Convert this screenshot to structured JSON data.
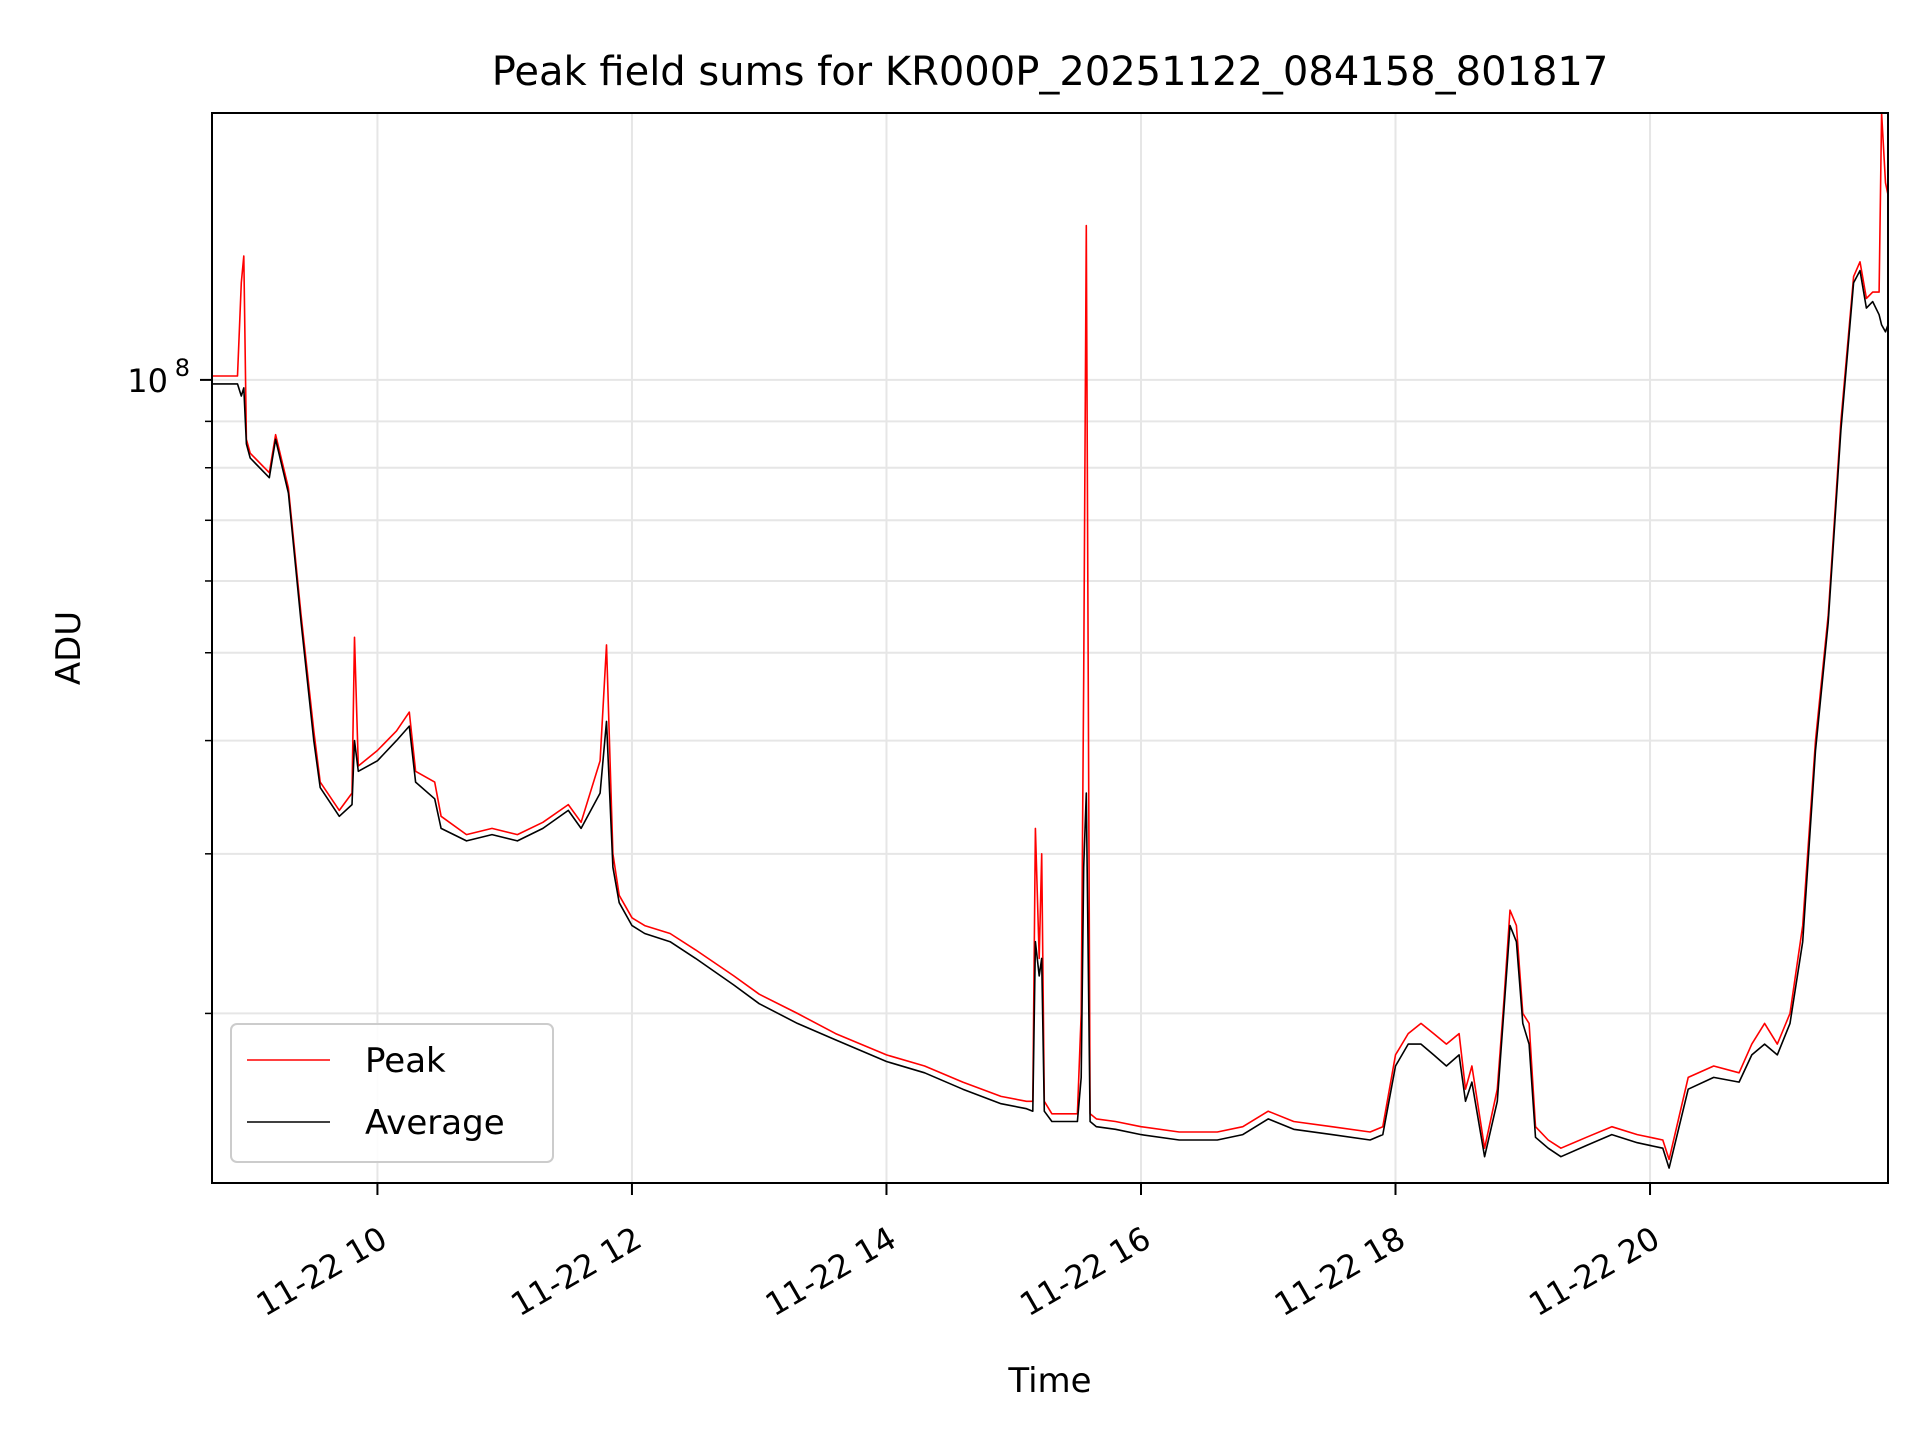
{
  "chart_data": {
    "type": "line",
    "title": "Peak field sums for KR000P_20251122_084158_801817",
    "xlabel": "Time",
    "ylabel": "ADU",
    "yscale": "log",
    "ylim": [
      13000000,
      197000000
    ],
    "xlim": [
      8.7,
      21.87
    ],
    "x_ticks": [
      {
        "value": 10,
        "label": "11-22 10"
      },
      {
        "value": 12,
        "label": "11-22 12"
      },
      {
        "value": 14,
        "label": "11-22 14"
      },
      {
        "value": 16,
        "label": "11-22 16"
      },
      {
        "value": 18,
        "label": "11-22 18"
      },
      {
        "value": 20,
        "label": "11-22 20"
      }
    ],
    "y_ticks": [
      {
        "value": 100000000,
        "label_base": "10",
        "label_exp": "8"
      }
    ],
    "y_minor_ticks": [
      20000000,
      30000000,
      40000000,
      50000000,
      60000000,
      70000000,
      80000000,
      90000000
    ],
    "grid": true,
    "legend_position": "lower-left",
    "colors": {
      "peak": "#ff0000",
      "average": "#000000",
      "grid": "#e6e6e6"
    },
    "series": [
      {
        "name": "Peak",
        "color": "#ff0000",
        "x": [
          8.7,
          8.9,
          8.93,
          8.95,
          8.97,
          9.0,
          9.15,
          9.2,
          9.3,
          9.4,
          9.5,
          9.55,
          9.7,
          9.8,
          9.82,
          9.85,
          10.0,
          10.15,
          10.25,
          10.3,
          10.45,
          10.5,
          10.7,
          10.9,
          11.1,
          11.3,
          11.5,
          11.6,
          11.75,
          11.8,
          11.85,
          11.9,
          12.0,
          12.1,
          12.3,
          12.5,
          12.8,
          13.0,
          13.3,
          13.6,
          14.0,
          14.3,
          14.6,
          14.9,
          15.1,
          15.15,
          15.17,
          15.2,
          15.22,
          15.24,
          15.3,
          15.4,
          15.5,
          15.53,
          15.55,
          15.57,
          15.6,
          15.65,
          15.8,
          16.0,
          16.3,
          16.6,
          16.8,
          17.0,
          17.2,
          17.5,
          17.8,
          17.9,
          18.0,
          18.1,
          18.2,
          18.3,
          18.4,
          18.5,
          18.55,
          18.6,
          18.7,
          18.8,
          18.85,
          18.9,
          18.95,
          19.0,
          19.05,
          19.1,
          19.2,
          19.3,
          19.5,
          19.7,
          19.9,
          20.1,
          20.15,
          20.3,
          20.5,
          20.7,
          20.8,
          20.9,
          21.0,
          21.1,
          21.2,
          21.3,
          21.4,
          21.5,
          21.6,
          21.65,
          21.7,
          21.75,
          21.8,
          21.82,
          21.85,
          21.87
        ],
        "y": [
          101000000,
          101000000,
          128000000,
          137000000,
          86000000,
          83000000,
          79000000,
          87000000,
          76000000,
          55000000,
          41000000,
          36000000,
          33500000,
          35000000,
          52000000,
          37500000,
          39000000,
          41000000,
          43000000,
          37000000,
          36000000,
          33000000,
          31500000,
          32000000,
          31500000,
          32500000,
          34000000,
          32500000,
          38000000,
          51000000,
          30000000,
          27000000,
          25500000,
          25000000,
          24500000,
          23500000,
          22000000,
          21000000,
          20000000,
          19000000,
          18000000,
          17500000,
          16800000,
          16200000,
          16000000,
          16000000,
          32000000,
          23000000,
          30000000,
          16000000,
          15500000,
          15500000,
          15500000,
          20000000,
          47000000,
          148000000,
          15500000,
          15300000,
          15200000,
          15000000,
          14800000,
          14800000,
          15000000,
          15600000,
          15200000,
          15000000,
          14800000,
          15000000,
          18000000,
          19000000,
          19500000,
          19000000,
          18500000,
          19000000,
          16500000,
          17500000,
          14200000,
          16500000,
          20500000,
          26000000,
          25000000,
          20000000,
          19500000,
          15000000,
          14500000,
          14200000,
          14600000,
          15000000,
          14700000,
          14500000,
          13800000,
          17000000,
          17500000,
          17200000,
          18500000,
          19500000,
          18500000,
          20000000,
          25000000,
          40000000,
          55000000,
          90000000,
          130000000,
          135000000,
          123000000,
          125000000,
          125000000,
          197000000,
          165000000,
          160000000
        ]
      },
      {
        "name": "Average",
        "color": "#000000",
        "x": [
          8.7,
          8.9,
          8.93,
          8.95,
          8.97,
          9.0,
          9.15,
          9.2,
          9.3,
          9.4,
          9.5,
          9.55,
          9.7,
          9.8,
          9.82,
          9.85,
          10.0,
          10.15,
          10.25,
          10.3,
          10.45,
          10.5,
          10.7,
          10.9,
          11.1,
          11.3,
          11.5,
          11.6,
          11.75,
          11.8,
          11.85,
          11.9,
          12.0,
          12.1,
          12.3,
          12.5,
          12.8,
          13.0,
          13.3,
          13.6,
          14.0,
          14.3,
          14.6,
          14.9,
          15.1,
          15.15,
          15.17,
          15.2,
          15.22,
          15.24,
          15.3,
          15.4,
          15.5,
          15.53,
          15.55,
          15.57,
          15.6,
          15.65,
          15.8,
          16.0,
          16.3,
          16.6,
          16.8,
          17.0,
          17.2,
          17.5,
          17.8,
          17.9,
          18.0,
          18.1,
          18.2,
          18.3,
          18.4,
          18.5,
          18.55,
          18.6,
          18.7,
          18.8,
          18.85,
          18.9,
          18.95,
          19.0,
          19.05,
          19.1,
          19.2,
          19.3,
          19.5,
          19.7,
          19.9,
          20.1,
          20.15,
          20.3,
          20.5,
          20.7,
          20.8,
          20.9,
          21.0,
          21.1,
          21.2,
          21.3,
          21.4,
          21.5,
          21.6,
          21.65,
          21.7,
          21.75,
          21.8,
          21.82,
          21.85,
          21.87
        ],
        "y": [
          99000000,
          99000000,
          96000000,
          98000000,
          85000000,
          82000000,
          78000000,
          86000000,
          75000000,
          54000000,
          40000000,
          35500000,
          33000000,
          34000000,
          40000000,
          37000000,
          38000000,
          40000000,
          41500000,
          36000000,
          34500000,
          32000000,
          31000000,
          31500000,
          31000000,
          32000000,
          33500000,
          32000000,
          35000000,
          42000000,
          29000000,
          26500000,
          25000000,
          24500000,
          24000000,
          23000000,
          21500000,
          20500000,
          19500000,
          18700000,
          17700000,
          17200000,
          16500000,
          15900000,
          15700000,
          15600000,
          24000000,
          22000000,
          23000000,
          15600000,
          15200000,
          15200000,
          15200000,
          17000000,
          29000000,
          35000000,
          15200000,
          15000000,
          14900000,
          14700000,
          14500000,
          14500000,
          14700000,
          15300000,
          14900000,
          14700000,
          14500000,
          14700000,
          17500000,
          18500000,
          18500000,
          18000000,
          17500000,
          18000000,
          16000000,
          16800000,
          13900000,
          16000000,
          20000000,
          25000000,
          24000000,
          19500000,
          18500000,
          14600000,
          14200000,
          13900000,
          14300000,
          14700000,
          14400000,
          14200000,
          13500000,
          16500000,
          17000000,
          16800000,
          18000000,
          18500000,
          18000000,
          19500000,
          24000000,
          39000000,
          54000000,
          88000000,
          128000000,
          132000000,
          120000000,
          122000000,
          118000000,
          115000000,
          113000000,
          115000000
        ]
      }
    ]
  }
}
